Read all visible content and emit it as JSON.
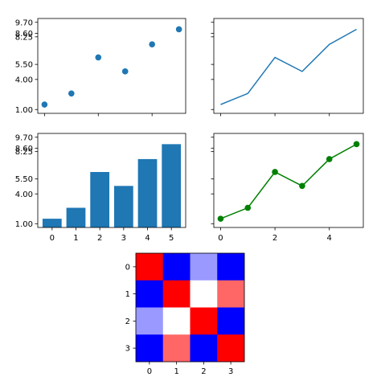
{
  "chart_data": [
    {
      "type": "scatter",
      "x": [
        0,
        1,
        2,
        3,
        4,
        5
      ],
      "values": [
        1.5,
        2.6,
        6.2,
        4.8,
        7.5,
        9.0
      ],
      "yticks": [
        1.0,
        4.0,
        5.5,
        8.25,
        8.6,
        9.7
      ],
      "ytick_labels": [
        "1.00",
        "4.00",
        "5.50",
        "8.25",
        "8.60",
        "9.70"
      ],
      "xticks": [
        0,
        2,
        4
      ],
      "show_xtick_labels": false,
      "show_ytick_labels": true,
      "color": "#1f77b4"
    },
    {
      "type": "line",
      "x": [
        0,
        1,
        2,
        3,
        4,
        5
      ],
      "values": [
        1.5,
        2.6,
        6.2,
        4.8,
        7.5,
        9.0
      ],
      "xticks": [
        0,
        2,
        4
      ],
      "show_xtick_labels": false,
      "show_ytick_labels": false,
      "color": "#1f77b4"
    },
    {
      "type": "bar",
      "categories": [
        "0",
        "1",
        "2",
        "3",
        "4",
        "5"
      ],
      "values": [
        1.5,
        2.6,
        6.2,
        4.8,
        7.5,
        9.0
      ],
      "yticks": [
        1.0,
        4.0,
        5.5,
        8.25,
        8.6,
        9.7
      ],
      "ytick_labels": [
        "1.00",
        "4.00",
        "5.50",
        "8.25",
        "8.60",
        "9.70"
      ],
      "show_xtick_labels": true,
      "show_ytick_labels": true,
      "color": "#1f77b4"
    },
    {
      "type": "line",
      "x": [
        0,
        1,
        2,
        3,
        4,
        5
      ],
      "values": [
        1.5,
        2.6,
        6.2,
        4.8,
        7.5,
        9.0
      ],
      "xticks": [
        0,
        2,
        4
      ],
      "xtick_labels": [
        "0",
        "2",
        "4"
      ],
      "show_xtick_labels": true,
      "show_ytick_labels": false,
      "markers": true,
      "color": "#008000"
    },
    {
      "type": "heatmap",
      "rows": [
        "0",
        "1",
        "2",
        "3"
      ],
      "cols": [
        "0",
        "1",
        "2",
        "3"
      ],
      "values": [
        [
          1.0,
          -1.0,
          -0.4,
          -1.0
        ],
        [
          -1.0,
          1.0,
          0.0,
          0.6
        ],
        [
          -0.4,
          0.0,
          1.0,
          -1.0
        ],
        [
          -1.0,
          0.6,
          -1.0,
          1.0
        ]
      ],
      "colormap": "bwr",
      "vmin": -1,
      "vmax": 1
    }
  ]
}
